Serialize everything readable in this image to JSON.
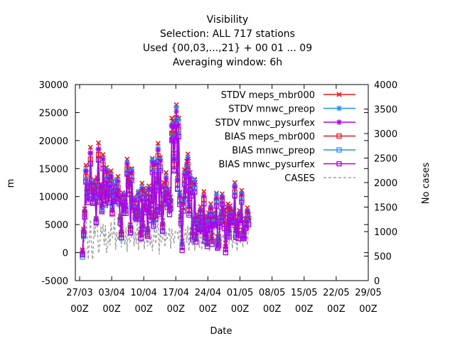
{
  "title": {
    "line1": "Visibility",
    "line2": "Selection: ALL    717 stations",
    "line3": "Used {00,03,...,21} + 00 01 ... 09",
    "line4": "Averaging window:  6h"
  },
  "chart_data": {
    "type": "line",
    "xlabel": "Date",
    "ylabel": "m",
    "y2label": "No cases",
    "ylim": [
      -5000,
      30000
    ],
    "y2lim": [
      0,
      4000
    ],
    "yticks": [
      "-5000",
      "0",
      "5000",
      "10000",
      "15000",
      "20000",
      "25000",
      "30000"
    ],
    "y2ticks": [
      "0",
      "500",
      "1000",
      "1500",
      "2000",
      "2500",
      "3000",
      "3500",
      "4000"
    ],
    "xticks": [
      {
        "top": "27/03",
        "bottom": "00Z"
      },
      {
        "top": "03/04",
        "bottom": "00Z"
      },
      {
        "top": "10/04",
        "bottom": "00Z"
      },
      {
        "top": "17/04",
        "bottom": "00Z"
      },
      {
        "top": "24/04",
        "bottom": "00Z"
      },
      {
        "top": "01/05",
        "bottom": "00Z"
      },
      {
        "top": "08/05",
        "bottom": "00Z"
      },
      {
        "top": "15/05",
        "bottom": "00Z"
      },
      {
        "top": "22/05",
        "bottom": "00Z"
      },
      {
        "top": "29/05",
        "bottom": "00Z"
      }
    ],
    "x_start": "2025-03-28",
    "step_hours": 6,
    "grid": false,
    "legend_position": "top-right",
    "series": [
      {
        "name": "STDV meps_mbr000",
        "color": "#e41a1c",
        "marker": "cross",
        "axis": "y",
        "values": [
          500,
          4200,
          7800,
          15600,
          11800,
          9600,
          12200,
          18800,
          12400,
          10100,
          13000,
          11800,
          6100,
          13400,
          19600,
          10500,
          12300,
          8600,
          17500,
          12800,
          10800,
          15200,
          12100,
          10600,
          14400,
          14600,
          7700,
          11200,
          10600,
          12100,
          11800,
          13600,
          10100,
          6500,
          4300,
          10700,
          8600,
          10400,
          8400,
          16700,
          14700,
          12600,
          5000,
          15000,
          9000,
          9900,
          8100,
          7600,
          8300,
          10800,
          7500,
          4200,
          12400,
          5300,
          11500,
          9100,
          10300,
          4300,
          11900,
          7700,
          9800,
          16800,
          6800,
          16300,
          7700,
          13100,
          19500,
          8300,
          17000,
          8900,
          5700,
          12500,
          11200,
          14300,
          10800,
          11300,
          9000,
          9900,
          24000,
          23500,
          17700,
          23300,
          26400,
          13900,
          24000,
          10800,
          7100,
          2000,
          9700,
          14800,
          11800,
          16300,
          17600,
          9000,
          14300,
          12600,
          4000,
          6100,
          13100,
          3400,
          6900,
          5800,
          6000,
          8200,
          6000,
          5300,
          10900,
          3700,
          6600,
          2500,
          7100,
          5200,
          8700,
          3000,
          7100,
          6900,
          6800,
          10600,
          2800,
          2900,
          6200,
          7500,
          10500,
          8100,
          6300,
          1700,
          4800,
          8700,
          4500,
          8400,
          7100,
          6600,
          7400,
          12500,
          4500,
          6000,
          4000,
          7500,
          7100,
          11100,
          4100,
          4000,
          6000,
          6100,
          8000,
          6800
        ]
      },
      {
        "name": "STDV mnwc_preop",
        "color": "#1e90ff",
        "marker": "star",
        "axis": "y",
        "values": [
          -300,
          3700,
          7300,
          14700,
          11600,
          10100,
          12200,
          17700,
          12600,
          9800,
          11800,
          11300,
          6000,
          13000,
          18400,
          10300,
          11900,
          8400,
          16700,
          11800,
          9700,
          14700,
          12600,
          10300,
          13800,
          13800,
          8600,
          10600,
          10800,
          13000,
          11200,
          12700,
          10000,
          6200,
          3600,
          9800,
          8200,
          10500,
          8300,
          16100,
          13800,
          12000,
          4600,
          14800,
          9100,
          9600,
          7500,
          7200,
          7900,
          10900,
          7600,
          3700,
          11700,
          4900,
          10800,
          8500,
          9400,
          4100,
          11400,
          6900,
          9000,
          16500,
          6300,
          16000,
          7300,
          12800,
          18600,
          8100,
          16700,
          8300,
          5200,
          11700,
          10600,
          13500,
          10200,
          10900,
          8200,
          9400,
          22800,
          23000,
          16800,
          22700,
          25900,
          13100,
          23700,
          10500,
          6600,
          1900,
          9400,
          14200,
          11200,
          15700,
          17000,
          8400,
          13600,
          12200,
          3600,
          6100,
          12900,
          3300,
          6500,
          5300,
          5500,
          7600,
          5600,
          5400,
          10100,
          3200,
          6100,
          2300,
          6600,
          5100,
          8100,
          2400,
          6800,
          6500,
          6300,
          10300,
          2200,
          2700,
          5900,
          7200,
          10000,
          7600,
          5500,
          1000,
          4600,
          8000,
          4100,
          7900,
          6600,
          6300,
          6700,
          11900,
          4200,
          5500,
          3400,
          7000,
          6800,
          10600,
          3800,
          3600,
          5300,
          5800,
          7500,
          6400
        ]
      },
      {
        "name": "STDV mnwc_pysurfex",
        "color": "#b000e6",
        "marker": "star",
        "axis": "y",
        "values": [
          200,
          3900,
          7400,
          14500,
          11200,
          9700,
          11900,
          17800,
          12100,
          9700,
          12200,
          11200,
          5900,
          13100,
          18500,
          10000,
          11800,
          8200,
          16700,
          12000,
          10000,
          14400,
          11800,
          10100,
          13500,
          13500,
          7500,
          10500,
          10100,
          12100,
          11100,
          12700,
          9700,
          6000,
          3700,
          10100,
          8100,
          10000,
          7900,
          15800,
          13800,
          11900,
          4500,
          14300,
          8600,
          9300,
          7400,
          7000,
          7700,
          10400,
          7000,
          3500,
          11300,
          4600,
          10600,
          8300,
          9500,
          3900,
          11300,
          7000,
          9100,
          16000,
          6000,
          15600,
          7100,
          12500,
          18300,
          7800,
          16300,
          8200,
          5000,
          11800,
          10300,
          13200,
          9700,
          10500,
          8200,
          9200,
          22600,
          22500,
          16600,
          22300,
          25200,
          12900,
          22800,
          10000,
          6300,
          1400,
          8800,
          13900,
          10900,
          15300,
          16600,
          8100,
          13200,
          11700,
          3300,
          5500,
          12300,
          2800,
          6200,
          4900,
          5300,
          7500,
          5200,
          4700,
          10100,
          3000,
          5900,
          1900,
          6300,
          4500,
          7900,
          2400,
          6300,
          6000,
          6200,
          9700,
          2000,
          2200,
          5600,
          6700,
          9800,
          7500,
          5500,
          1000,
          4000,
          8000,
          3800,
          7700,
          6500,
          5900,
          6700,
          11700,
          3800,
          5500,
          3400,
          6800,
          6400,
          10300,
          3500,
          3400,
          5300,
          5400,
          7300,
          6100
        ]
      },
      {
        "name": "BIAS meps_mbr000",
        "color": "#e41a1c",
        "marker": "square",
        "axis": "y",
        "values": [
          -300,
          3300,
          6800,
          13600,
          10600,
          9000,
          11200,
          16700,
          11400,
          9100,
          11400,
          10400,
          5500,
          12100,
          17500,
          9300,
          11000,
          7700,
          15700,
          11100,
          9300,
          13700,
          11100,
          9400,
          12900,
          12600,
          7100,
          9800,
          9600,
          11100,
          10400,
          11700,
          9100,
          5700,
          3200,
          9500,
          7500,
          9300,
          7500,
          14900,
          12900,
          11000,
          4000,
          13600,
          8000,
          8700,
          6900,
          6500,
          7200,
          9700,
          6500,
          3200,
          10700,
          4200,
          9800,
          7800,
          8800,
          3300,
          10500,
          6500,
          8400,
          15100,
          5500,
          14600,
          6500,
          11700,
          17300,
          7300,
          15300,
          7800,
          4500,
          11000,
          9600,
          12300,
          9100,
          9900,
          7600,
          8500,
          21300,
          21300,
          15700,
          21000,
          24100,
          12200,
          21900,
          9400,
          5900,
          1000,
          8300,
          13000,
          10300,
          14600,
          15700,
          7600,
          12300,
          11000,
          3000,
          5100,
          11500,
          2500,
          5900,
          4500,
          4800,
          7000,
          4800,
          4300,
          9500,
          2700,
          5500,
          1700,
          5900,
          4100,
          7400,
          2000,
          5800,
          5600,
          5700,
          9200,
          1600,
          1900,
          5200,
          6300,
          9200,
          7000,
          5100,
          600,
          3600,
          7500,
          3500,
          7300,
          6000,
          5600,
          6200,
          10800,
          3400,
          5100,
          3100,
          6300,
          6000,
          9700,
          3100,
          3100,
          4900,
          5000,
          6700,
          5700
        ]
      },
      {
        "name": "BIAS mnwc_preop",
        "color": "#1e90ff",
        "marker": "square",
        "axis": "y",
        "values": [
          -800,
          2900,
          6300,
          12800,
          10400,
          9400,
          11200,
          15800,
          11600,
          8900,
          10400,
          10000,
          5400,
          11800,
          16500,
          9200,
          10600,
          7500,
          15000,
          10200,
          8400,
          13300,
          11600,
          9100,
          12500,
          11900,
          8000,
          9300,
          9800,
          12000,
          9800,
          10900,
          9000,
          5400,
          2600,
          8700,
          7100,
          9400,
          7400,
          14300,
          12100,
          10500,
          3600,
          13400,
          8100,
          8400,
          6300,
          6100,
          6800,
          9900,
          6600,
          2700,
          10100,
          3800,
          9200,
          7300,
          7900,
          3100,
          10000,
          5700,
          7700,
          14800,
          5000,
          14300,
          6100,
          11400,
          16500,
          7100,
          15000,
          7300,
          4000,
          10300,
          9100,
          11600,
          8600,
          9500,
          6800,
          8000,
          20200,
          20800,
          14800,
          20400,
          23600,
          11500,
          21600,
          9100,
          5500,
          900,
          8000,
          12400,
          9700,
          14000,
          15100,
          7000,
          11600,
          10600,
          2600,
          5100,
          11400,
          2400,
          5500,
          4100,
          4300,
          6400,
          4400,
          4400,
          8700,
          2200,
          5000,
          1500,
          5400,
          4000,
          6900,
          1500,
          5500,
          5300,
          5200,
          8900,
          1000,
          1700,
          4900,
          6000,
          8800,
          6600,
          4300,
          0,
          3400,
          6900,
          3100,
          6800,
          5500,
          5300,
          5500,
          10300,
          3100,
          4600,
          2500,
          5900,
          5700,
          9300,
          2800,
          2700,
          4300,
          4800,
          6200,
          5300
        ]
      },
      {
        "name": "BIAS mnwc_pysurfex",
        "color": "#b000e6",
        "marker": "square",
        "axis": "y",
        "values": [
          -400,
          3100,
          6400,
          12600,
          10000,
          9000,
          10900,
          15900,
          11100,
          8800,
          10800,
          9900,
          5300,
          11900,
          16600,
          9000,
          10500,
          7300,
          15000,
          10400,
          8700,
          13000,
          10800,
          8900,
          12200,
          11600,
          6900,
          9200,
          9100,
          11100,
          9700,
          10900,
          8700,
          5200,
          2700,
          9000,
          7000,
          8900,
          7000,
          14000,
          12100,
          10400,
          3500,
          12900,
          7600,
          8100,
          6200,
          5900,
          6600,
          9400,
          6000,
          2500,
          9700,
          3500,
          9000,
          7100,
          8000,
          2900,
          9900,
          5800,
          7800,
          14300,
          4700,
          13900,
          5900,
          11100,
          16200,
          6800,
          14600,
          7200,
          3800,
          10400,
          8800,
          11300,
          8100,
          9100,
          6800,
          7800,
          20000,
          20300,
          14600,
          20000,
          22900,
          11300,
          20700,
          8600,
          5200,
          400,
          7400,
          12100,
          9400,
          13600,
          14700,
          6700,
          11200,
          10100,
          2300,
          4500,
          10800,
          1900,
          5200,
          3700,
          4100,
          6300,
          4000,
          3700,
          8700,
          2000,
          4800,
          1100,
          5100,
          3400,
          6700,
          1500,
          5000,
          4800,
          5100,
          8300,
          800,
          1200,
          4600,
          5500,
          8600,
          6500,
          4300,
          0,
          2800,
          6900,
          2800,
          6600,
          5400,
          4900,
          5500,
          10100,
          2700,
          4600,
          2500,
          5700,
          5300,
          9000,
          2500,
          2500,
          4300,
          4400,
          6000,
          5000
        ]
      },
      {
        "name": "CASES",
        "color": "#a0a0a0",
        "marker": "none",
        "dashed": true,
        "axis": "y2",
        "values": [
          580,
          700,
          900,
          1400,
          900,
          430,
          870,
          1250,
          580,
          430,
          1100,
          900,
          1300,
          1100,
          560,
          700,
          1100,
          930,
          1160,
          720,
          1130,
          560,
          700,
          1000,
          720,
          1200,
          870,
          950,
          1270,
          630,
          990,
          820,
          1000,
          1030,
          680,
          1220,
          850,
          730,
          1090,
          590,
          1190,
          780,
          810,
          940,
          1140,
          700,
          1000,
          750,
          1250,
          620,
          1100,
          760,
          930,
          1170,
          640,
          1040,
          840,
          700,
          1190,
          710,
          920,
          600,
          870,
          1110,
          750,
          1040,
          1180,
          530,
          1110,
          780,
          830,
          1150,
          680,
          1000,
          860,
          900,
          1090,
          650,
          1060,
          880,
          760,
          1020,
          1000,
          970,
          830,
          1200,
          720,
          1080,
          830,
          890,
          1050,
          770,
          1120,
          600,
          1110,
          880,
          700,
          1150,
          610,
          1070,
          790,
          990,
          670,
          1190,
          620,
          1000,
          850,
          690,
          1000,
          820,
          1130,
          590,
          940,
          850,
          760,
          1160,
          620,
          960,
          990,
          680,
          1050,
          810,
          890,
          950,
          700,
          1110,
          600,
          980,
          730,
          1020,
          920,
          660,
          1080,
          760,
          910,
          600,
          970,
          870,
          750,
          1030,
          680,
          990,
          800,
          1010,
          720,
          1120
        ]
      }
    ]
  }
}
